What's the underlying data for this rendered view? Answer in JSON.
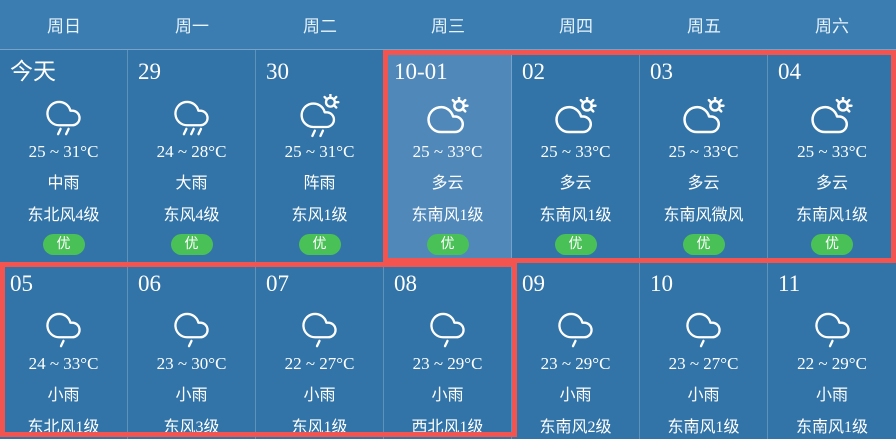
{
  "theme": {
    "background": "#3274a7",
    "header_background": "#3b7cb1",
    "selected_cell_background": "#4f88b9",
    "text": "#ffffff",
    "header_text": "#e8f4fd",
    "badge_background": "#4ac157",
    "badge_text": "#ffffff",
    "highlight_border": "#f45450",
    "separator": "rgba(255,255,255,0.22)"
  },
  "header": {
    "days": [
      "周日",
      "周一",
      "周二",
      "周三",
      "周四",
      "周五",
      "周六"
    ]
  },
  "rows": [
    {
      "cells": [
        {
          "date": "今天",
          "icon": "moderate-rain-icon",
          "temp": "25 ~ 31°C",
          "condition": "中雨",
          "wind": "东北风4级",
          "aqi": "优",
          "selected": false
        },
        {
          "date": "29",
          "icon": "heavy-rain-icon",
          "temp": "24 ~ 28°C",
          "condition": "大雨",
          "wind": "东风4级",
          "aqi": "优",
          "selected": false
        },
        {
          "date": "30",
          "icon": "shower-rain-icon",
          "temp": "25 ~ 31°C",
          "condition": "阵雨",
          "wind": "东风1级",
          "aqi": "优",
          "selected": false
        },
        {
          "date": "10-01",
          "icon": "partly-cloudy-icon",
          "temp": "25 ~ 33°C",
          "condition": "多云",
          "wind": "东南风1级",
          "aqi": "优",
          "selected": true
        },
        {
          "date": "02",
          "icon": "partly-cloudy-icon",
          "temp": "25 ~ 33°C",
          "condition": "多云",
          "wind": "东南风1级",
          "aqi": "优",
          "selected": false
        },
        {
          "date": "03",
          "icon": "partly-cloudy-icon",
          "temp": "25 ~ 33°C",
          "condition": "多云",
          "wind": "东南风微风",
          "aqi": "优",
          "selected": false
        },
        {
          "date": "04",
          "icon": "partly-cloudy-icon",
          "temp": "25 ~ 33°C",
          "condition": "多云",
          "wind": "东南风1级",
          "aqi": "优",
          "selected": false
        }
      ]
    },
    {
      "cells": [
        {
          "date": "05",
          "icon": "light-rain-icon",
          "temp": "24 ~ 33°C",
          "condition": "小雨",
          "wind": "东北风1级",
          "selected": false
        },
        {
          "date": "06",
          "icon": "light-rain-icon",
          "temp": "23 ~ 30°C",
          "condition": "小雨",
          "wind": "东风3级",
          "selected": false
        },
        {
          "date": "07",
          "icon": "light-rain-icon",
          "temp": "22 ~ 27°C",
          "condition": "小雨",
          "wind": "东风1级",
          "selected": false
        },
        {
          "date": "08",
          "icon": "light-rain-icon",
          "temp": "23 ~ 29°C",
          "condition": "小雨",
          "wind": "西北风1级",
          "selected": false
        },
        {
          "date": "09",
          "icon": "light-rain-icon",
          "temp": "23 ~ 29°C",
          "condition": "小雨",
          "wind": "东南风2级",
          "selected": false
        },
        {
          "date": "10",
          "icon": "light-rain-icon",
          "temp": "23 ~ 27°C",
          "condition": "小雨",
          "wind": "东南风1级",
          "selected": false
        },
        {
          "date": "11",
          "icon": "light-rain-icon",
          "temp": "22 ~ 29°C",
          "condition": "小雨",
          "wind": "东南风1级",
          "selected": false
        }
      ]
    }
  ]
}
